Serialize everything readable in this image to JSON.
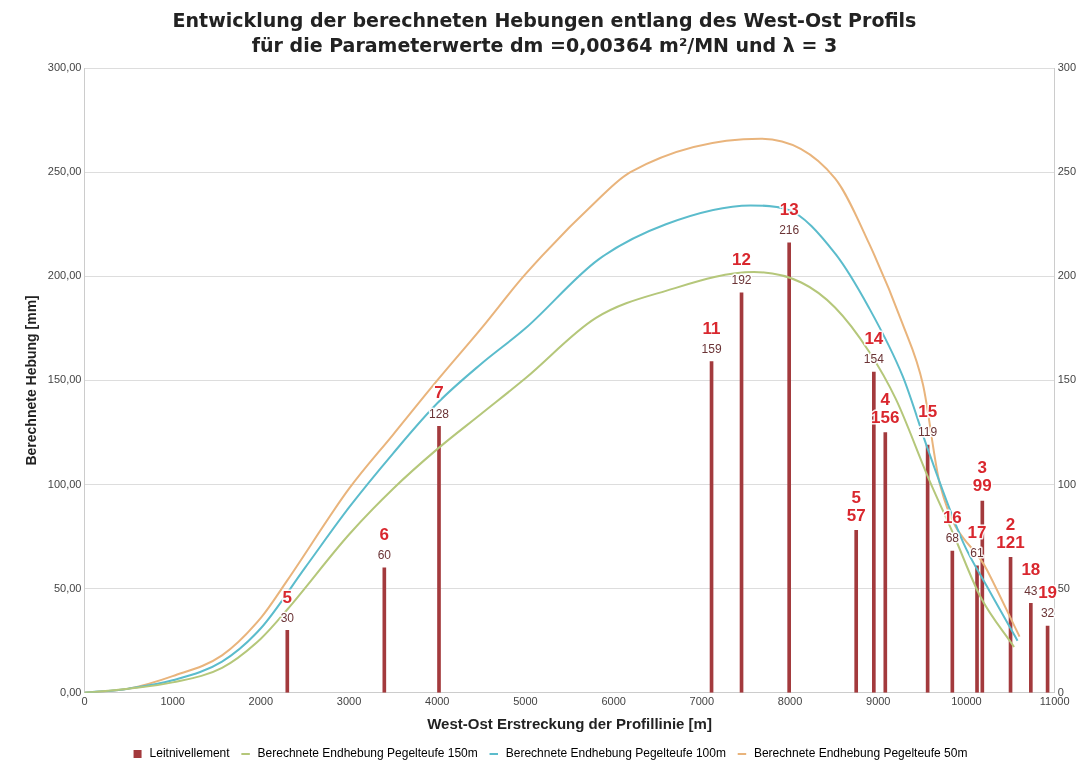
{
  "chart_data": {
    "type": "line",
    "title": "Entwicklung der berechneten Hebungen entlang des West-Ost Profils für die Parameterwerte dm =0,00364 m²/MN und λ = 3",
    "xlabel": "West-Ost Erstreckung der Profillinie [m]",
    "ylabel": "Berechnete Hebung [mm]",
    "xlim": [
      0,
      11000
    ],
    "xticks": [
      0,
      1000,
      2000,
      3000,
      4000,
      5000,
      6000,
      7000,
      8000,
      9000,
      10000,
      11000
    ],
    "ylim": [
      0,
      300
    ],
    "yticks": [
      {
        "value": 0,
        "label": "0,00"
      },
      {
        "value": 50,
        "label": "50,00"
      },
      {
        "value": 100,
        "label": "100,00"
      },
      {
        "value": 150,
        "label": "150,00"
      },
      {
        "value": 200,
        "label": "200,00"
      },
      {
        "value": 250,
        "label": "250,00"
      },
      {
        "value": 300,
        "label": "300,00"
      }
    ],
    "y2lim": [
      0,
      300
    ],
    "y2ticks": [
      0,
      50,
      100,
      150,
      200,
      250,
      300
    ],
    "grid": "y",
    "legend": "bottom",
    "series": [
      {
        "type": "bar",
        "name": "Leitnivellement",
        "color": "#a33a3d",
        "x": [
          2300,
          3400,
          4020,
          7110,
          7450,
          7990,
          8750,
          8950,
          9080,
          9560,
          9840,
          10120,
          10180,
          10500,
          10730,
          10920
        ],
        "values": [
          30,
          60,
          128,
          159,
          192,
          216,
          78,
          154,
          125,
          119,
          68,
          61,
          92,
          65,
          43,
          32
        ],
        "value_labels": [
          "30",
          "60",
          "128",
          "159",
          "192",
          "216",
          null,
          "154",
          null,
          "119",
          "68",
          "61",
          null,
          null,
          "43",
          "32"
        ]
      },
      {
        "name": "Berechnete Endhebung Pegelteufe 150m",
        "color": "#b5c77a",
        "x": [
          0,
          500,
          1000,
          1560,
          2000,
          2300,
          3000,
          3500,
          4000,
          4500,
          5000,
          5800,
          6593,
          7590,
          8127,
          8510,
          8893,
          9200,
          9570,
          9854,
          10160,
          10540
        ],
        "values": [
          0,
          2,
          5,
          12,
          26,
          40,
          76,
          98,
          117,
          134,
          151,
          180,
          193,
          202,
          197,
          185,
          164,
          141,
          103,
          76,
          46,
          22
        ]
      },
      {
        "name": "Berechnete Endhebung Pegelteufe 100m",
        "color": "#5bbccc",
        "x": [
          0,
          500,
          1000,
          1560,
          2000,
          2500,
          3000,
          3500,
          4000,
          4500,
          5000,
          5826,
          6593,
          7552,
          7974,
          8510,
          8893,
          9277,
          9570,
          9965,
          10233,
          10579
        ],
        "values": [
          0,
          2,
          6,
          15,
          31,
          60,
          89,
          115,
          139,
          158,
          175,
          208,
          225,
          234,
          232,
          211,
          185,
          152,
          116,
          72,
          51,
          25
        ]
      },
      {
        "name": "Berechnete Endhebung Pegelteufe 50m",
        "color": "#e9b47c",
        "x": [
          0,
          500,
          1000,
          1560,
          2000,
          2300,
          3000,
          3500,
          4000,
          4500,
          5000,
          5826,
          6190,
          7667,
          8510,
          8893,
          9277,
          9507,
          9700,
          10233,
          10602
        ],
        "values": [
          0,
          2,
          8,
          18,
          36,
          54,
          98,
          124,
          150,
          175,
          201,
          237,
          250,
          266,
          247,
          216,
          177,
          148,
          100,
          59,
          27
        ]
      }
    ],
    "annotations": [
      {
        "text": "5",
        "x": 2300,
        "y": 30
      },
      {
        "text": "6",
        "x": 3400,
        "y": 60
      },
      {
        "text": "7",
        "x": 4020,
        "y": 128
      },
      {
        "text": "11",
        "x": 7110,
        "y": 159
      },
      {
        "text": "12",
        "x": 7450,
        "y": 192
      },
      {
        "text": "13",
        "x": 7990,
        "y": 216
      },
      {
        "text": "14",
        "x": 8950,
        "y": 154
      },
      {
        "text": "15",
        "x": 9560,
        "y": 119
      },
      {
        "text": "16",
        "x": 9840,
        "y": 68
      },
      {
        "text": "17",
        "x": 10120,
        "y": 61
      },
      {
        "text": "18",
        "x": 10730,
        "y": 43
      },
      {
        "text": "19",
        "x": 10920,
        "y": 32
      },
      {
        "text": "57",
        "x": 8750,
        "y": 78
      },
      {
        "text": "5",
        "x": 8750,
        "y": 78
      },
      {
        "text": "156",
        "x": 9080,
        "y": 125
      },
      {
        "text": "4",
        "x": 9080,
        "y": 125
      },
      {
        "text": "99",
        "x": 10180,
        "y": 92
      },
      {
        "text": "3",
        "x": 10180,
        "y": 92
      },
      {
        "text": "121",
        "x": 10500,
        "y": 65
      },
      {
        "text": "2",
        "x": 10500,
        "y": 65
      }
    ]
  }
}
